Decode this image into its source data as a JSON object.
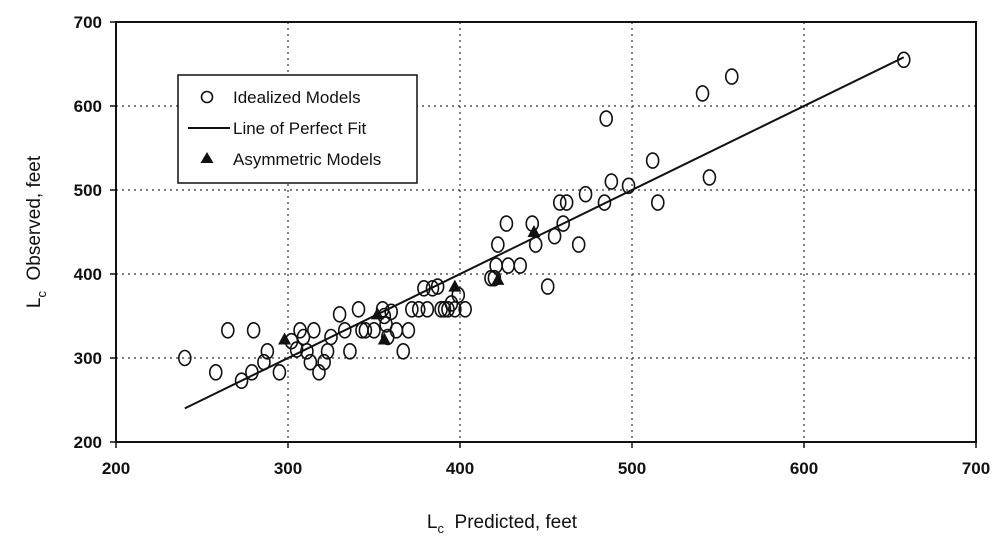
{
  "chart_data": {
    "type": "scatter",
    "xlabel": {
      "main": "L",
      "sub": "c",
      "rest": "  Predicted, feet"
    },
    "ylabel": {
      "main": "L",
      "sub": "c",
      "rest": "  Observed, feet"
    },
    "xlim": [
      200,
      700
    ],
    "ylim": [
      200,
      700
    ],
    "xticks": [
      200,
      300,
      400,
      500,
      600,
      700
    ],
    "yticks": [
      200,
      300,
      400,
      500,
      600,
      700
    ],
    "grid": true,
    "legend_position": "top-left",
    "legend": [
      {
        "key": "idealized",
        "label": "Idealized Models",
        "marker": "open-circle"
      },
      {
        "key": "fit",
        "label": "Line of Perfect Fit",
        "marker": "line"
      },
      {
        "key": "asymmetric",
        "label": "Asymmetric Models",
        "marker": "filled-triangle"
      }
    ],
    "line_of_perfect_fit": {
      "x": [
        240,
        658
      ],
      "y": [
        240,
        658
      ]
    },
    "series": [
      {
        "name": "Idealized Models",
        "marker": "open-circle",
        "points": [
          [
            240,
            300
          ],
          [
            258,
            283
          ],
          [
            265,
            333
          ],
          [
            273,
            273
          ],
          [
            279,
            283
          ],
          [
            280,
            333
          ],
          [
            286,
            295
          ],
          [
            288,
            308
          ],
          [
            295,
            283
          ],
          [
            302,
            320
          ],
          [
            305,
            310
          ],
          [
            307,
            333
          ],
          [
            309,
            325
          ],
          [
            311,
            308
          ],
          [
            313,
            295
          ],
          [
            315,
            333
          ],
          [
            318,
            283
          ],
          [
            321,
            295
          ],
          [
            323,
            308
          ],
          [
            325,
            325
          ],
          [
            330,
            352
          ],
          [
            333,
            333
          ],
          [
            336,
            308
          ],
          [
            341,
            358
          ],
          [
            343,
            333
          ],
          [
            345,
            333
          ],
          [
            350,
            333
          ],
          [
            355,
            358
          ],
          [
            356,
            350
          ],
          [
            357,
            340
          ],
          [
            358,
            325
          ],
          [
            360,
            355
          ],
          [
            363,
            333
          ],
          [
            367,
            308
          ],
          [
            370,
            333
          ],
          [
            372,
            358
          ],
          [
            376,
            358
          ],
          [
            379,
            383
          ],
          [
            381,
            358
          ],
          [
            384,
            383
          ],
          [
            387,
            385
          ],
          [
            389,
            358
          ],
          [
            391,
            358
          ],
          [
            393,
            358
          ],
          [
            395,
            365
          ],
          [
            397,
            358
          ],
          [
            399,
            375
          ],
          [
            403,
            358
          ],
          [
            418,
            395
          ],
          [
            420,
            395
          ],
          [
            421,
            410
          ],
          [
            422,
            435
          ],
          [
            427,
            460
          ],
          [
            428,
            410
          ],
          [
            435,
            410
          ],
          [
            442,
            460
          ],
          [
            444,
            435
          ],
          [
            451,
            385
          ],
          [
            455,
            445
          ],
          [
            458,
            485
          ],
          [
            460,
            460
          ],
          [
            462,
            485
          ],
          [
            469,
            435
          ],
          [
            473,
            495
          ],
          [
            484,
            485
          ],
          [
            485,
            585
          ],
          [
            488,
            510
          ],
          [
            498,
            505
          ],
          [
            512,
            535
          ],
          [
            515,
            485
          ],
          [
            541,
            615
          ],
          [
            545,
            515
          ],
          [
            558,
            635
          ],
          [
            658,
            655
          ]
        ]
      },
      {
        "name": "Asymmetric Models",
        "marker": "filled-triangle",
        "points": [
          [
            298,
            322
          ],
          [
            352,
            352
          ],
          [
            356,
            322
          ],
          [
            397,
            385
          ],
          [
            422,
            393
          ],
          [
            443,
            450
          ]
        ]
      }
    ]
  }
}
